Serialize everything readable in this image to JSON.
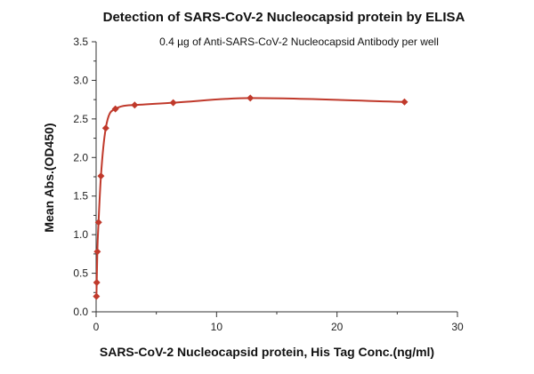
{
  "chart_data": {
    "type": "scatter",
    "title": "Detection of SARS-CoV-2 Nucleocapsid protein by ELISA",
    "subtitle": "0.4 µg of Anti-SARS-CoV-2 Nucleocapsid Antibody  per well",
    "xlabel": "SARS-CoV-2 Nucleocapsid protein, His Tag Conc.(ng/ml)",
    "ylabel": "Mean Abs.(OD450)",
    "xlim": [
      0,
      30
    ],
    "ylim": [
      0,
      3.5
    ],
    "x_ticks": [
      "0",
      "10",
      "20",
      "30"
    ],
    "y_ticks": [
      "0.0",
      "0.5",
      "1.0",
      "1.5",
      "2.0",
      "2.5",
      "3.0",
      "3.5"
    ],
    "grid": false,
    "legend": "none",
    "colors": {
      "series": "#c0392b"
    },
    "series": [
      {
        "x": [
          0.025,
          0.05,
          0.1,
          0.2,
          0.4,
          0.8,
          1.6,
          3.2,
          6.4,
          12.8,
          25.6
        ],
        "y": [
          0.2,
          0.38,
          0.78,
          1.16,
          1.76,
          2.38,
          2.63,
          2.68,
          2.71,
          2.77,
          2.72
        ]
      }
    ]
  }
}
